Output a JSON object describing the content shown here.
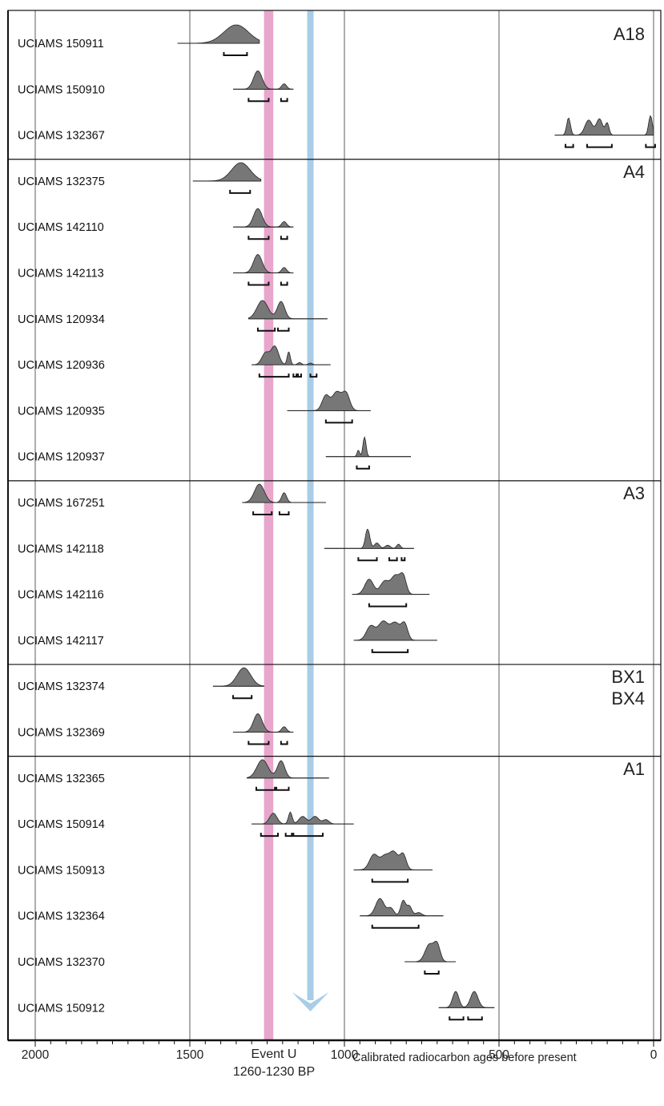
{
  "chart_data": {
    "type": "range-plot",
    "xlabel": "Calibrated radiocarbon ages before present",
    "xlim": [
      2000,
      0
    ],
    "x_reversed": true,
    "x_ticks": [
      2000,
      1500,
      1000,
      500,
      0
    ],
    "x_tick_labels": [
      "2000",
      "1500",
      "1000",
      "500",
      "0"
    ],
    "x_minor_tick_step": 50,
    "grid": true,
    "groups": [
      {
        "name": "A18",
        "samples": [
          {
            "label": "UCIAMS 150911",
            "range": [
              1540,
              1275
            ],
            "peaks": [
              [
                1350,
                0.85,
                40
              ]
            ],
            "sigma2": [
              [
                1390,
                1315
              ]
            ]
          },
          {
            "label": "UCIAMS 150910",
            "range": [
              1360,
              1165
            ],
            "peaks": [
              [
                1280,
                0.85,
                14
              ],
              [
                1195,
                0.25,
                8
              ]
            ],
            "sigma2": [
              [
                1310,
                1245
              ],
              [
                1205,
                1185
              ]
            ]
          },
          {
            "label": "UCIAMS 132367",
            "range": [
              320,
              0
            ],
            "peaks": [
              [
                275,
                0.8,
                6
              ],
              [
                210,
                0.7,
                12
              ],
              [
                175,
                0.75,
                10
              ],
              [
                150,
                0.55,
                6
              ],
              [
                10,
                0.9,
                6
              ]
            ],
            "sigma2": [
              [
                285,
                260
              ],
              [
                215,
                135
              ],
              [
                25,
                -5
              ]
            ]
          }
        ]
      },
      {
        "name": "A4",
        "samples": [
          {
            "label": "UCIAMS 132375",
            "range": [
              1490,
              1270
            ],
            "peaks": [
              [
                1335,
                0.85,
                30
              ]
            ],
            "sigma2": [
              [
                1370,
                1305
              ]
            ]
          },
          {
            "label": "UCIAMS 142110",
            "range": [
              1360,
              1165
            ],
            "peaks": [
              [
                1280,
                0.85,
                14
              ],
              [
                1195,
                0.25,
                8
              ]
            ],
            "sigma2": [
              [
                1310,
                1245
              ],
              [
                1205,
                1185
              ]
            ]
          },
          {
            "label": "UCIAMS 142113",
            "range": [
              1360,
              1165
            ],
            "peaks": [
              [
                1280,
                0.85,
                14
              ],
              [
                1195,
                0.25,
                8
              ]
            ],
            "sigma2": [
              [
                1310,
                1245
              ],
              [
                1205,
                1185
              ]
            ]
          },
          {
            "label": "UCIAMS 120934",
            "range": [
              1310,
              1055
            ],
            "peaks": [
              [
                1265,
                0.85,
                18
              ],
              [
                1205,
                0.8,
                12
              ]
            ],
            "sigma2": [
              [
                1280,
                1225
              ],
              [
                1215,
                1180
              ]
            ]
          },
          {
            "label": "UCIAMS 120936",
            "range": [
              1300,
              1045
            ],
            "peaks": [
              [
                1255,
                0.55,
                12
              ],
              [
                1225,
                0.85,
                12
              ],
              [
                1180,
                0.6,
                5
              ],
              [
                1145,
                0.1,
                6
              ],
              [
                1110,
                0.08,
                6
              ]
            ],
            "sigma2": [
              [
                1275,
                1180
              ],
              [
                1165,
                1155
              ],
              [
                1150,
                1140
              ],
              [
                1110,
                1090
              ]
            ]
          },
          {
            "label": "UCIAMS 120935",
            "range": [
              1185,
              915
            ],
            "peaks": [
              [
                1060,
                0.7,
                12
              ],
              [
                1025,
                0.85,
                14
              ],
              [
                995,
                0.8,
                12
              ]
            ],
            "sigma2": [
              [
                1060,
                975
              ]
            ]
          },
          {
            "label": "UCIAMS 120937",
            "range": [
              1060,
              785
            ],
            "peaks": [
              [
                935,
                0.9,
                5
              ],
              [
                955,
                0.3,
                4
              ]
            ],
            "sigma2": [
              [
                960,
                920
              ]
            ]
          }
        ]
      },
      {
        "name": "A3",
        "samples": [
          {
            "label": "UCIAMS 167251",
            "range": [
              1330,
              1060
            ],
            "peaks": [
              [
                1275,
                0.85,
                16
              ],
              [
                1195,
                0.45,
                8
              ]
            ],
            "sigma2": [
              [
                1295,
                1235
              ],
              [
                1210,
                1180
              ]
            ]
          },
          {
            "label": "UCIAMS 142118",
            "range": [
              1065,
              775
            ],
            "peaks": [
              [
                925,
                0.9,
                7
              ],
              [
                895,
                0.25,
                8
              ],
              [
                860,
                0.15,
                8
              ],
              [
                825,
                0.2,
                6
              ]
            ],
            "sigma2": [
              [
                955,
                895
              ],
              [
                855,
                830
              ],
              [
                815,
                805
              ]
            ]
          },
          {
            "label": "UCIAMS 142116",
            "range": [
              975,
              725
            ],
            "peaks": [
              [
                920,
                0.7,
                14
              ],
              [
                870,
                0.6,
                14
              ],
              [
                835,
                0.85,
                14
              ],
              [
                810,
                0.8,
                10
              ]
            ],
            "sigma2": [
              [
                920,
                800
              ]
            ]
          },
          {
            "label": "UCIAMS 142117",
            "range": [
              970,
              700
            ],
            "peaks": [
              [
                915,
                0.65,
                14
              ],
              [
                875,
                0.85,
                16
              ],
              [
                835,
                0.8,
                16
              ],
              [
                805,
                0.7,
                10
              ]
            ],
            "sigma2": [
              [
                910,
                795
              ]
            ]
          }
        ]
      },
      {
        "name": "BX1",
        "name2": "BX4",
        "samples": [
          {
            "label": "UCIAMS 132374",
            "range": [
              1425,
              1260
            ],
            "peaks": [
              [
                1325,
                0.85,
                22
              ]
            ],
            "sigma2": [
              [
                1360,
                1300
              ]
            ]
          },
          {
            "label": "UCIAMS 132369",
            "range": [
              1360,
              1165
            ],
            "peaks": [
              [
                1280,
                0.85,
                14
              ],
              [
                1195,
                0.25,
                8
              ]
            ],
            "sigma2": [
              [
                1310,
                1245
              ],
              [
                1205,
                1185
              ]
            ]
          }
        ]
      },
      {
        "name": "A1",
        "samples": [
          {
            "label": "UCIAMS 132365",
            "range": [
              1315,
              1050
            ],
            "peaks": [
              [
                1265,
                0.85,
                18
              ],
              [
                1205,
                0.8,
                12
              ]
            ],
            "sigma2": [
              [
                1285,
                1225
              ],
              [
                1220,
                1180
              ]
            ]
          },
          {
            "label": "UCIAMS 150914",
            "range": [
              1300,
              970
            ],
            "peaks": [
              [
                1230,
                0.5,
                12
              ],
              [
                1175,
                0.55,
                6
              ],
              [
                1135,
                0.35,
                12
              ],
              [
                1095,
                0.35,
                12
              ],
              [
                1060,
                0.2,
                10
              ]
            ],
            "sigma2": [
              [
                1270,
                1215
              ],
              [
                1190,
                1170
              ],
              [
                1165,
                1070
              ]
            ]
          },
          {
            "label": "UCIAMS 150913",
            "range": [
              970,
              715
            ],
            "peaks": [
              [
                905,
                0.7,
                14
              ],
              [
                870,
                0.6,
                14
              ],
              [
                840,
                0.8,
                14
              ],
              [
                810,
                0.7,
                10
              ]
            ],
            "sigma2": [
              [
                910,
                795
              ]
            ]
          },
          {
            "label": "UCIAMS 132364",
            "range": [
              950,
              680
            ],
            "peaks": [
              [
                885,
                0.8,
                14
              ],
              [
                850,
                0.35,
                10
              ],
              [
                810,
                0.7,
                8
              ],
              [
                790,
                0.45,
                8
              ],
              [
                760,
                0.15,
                10
              ]
            ],
            "sigma2": [
              [
                910,
                760
              ]
            ]
          },
          {
            "label": "UCIAMS 132370",
            "range": [
              805,
              640
            ],
            "peaks": [
              [
                725,
                0.8,
                14
              ],
              [
                700,
                0.75,
                10
              ]
            ],
            "sigma2": [
              [
                740,
                695
              ]
            ]
          },
          {
            "label": "UCIAMS 150912",
            "range": [
              695,
              515
            ],
            "peaks": [
              [
                640,
                0.75,
                10
              ],
              [
                580,
                0.75,
                12
              ]
            ],
            "sigma2": [
              [
                660,
                615
              ],
              [
                600,
                555
              ]
            ]
          }
        ]
      }
    ],
    "event": {
      "label": "Event U",
      "sublabel": "1260-1230 BP",
      "range": [
        1260,
        1230
      ],
      "color": "#e8a6cc"
    },
    "arrow": {
      "x": 1110,
      "color": "#a9cde8"
    },
    "colors": {
      "density_fill": "#777777",
      "line": "#111111",
      "grid": "#333333"
    }
  }
}
